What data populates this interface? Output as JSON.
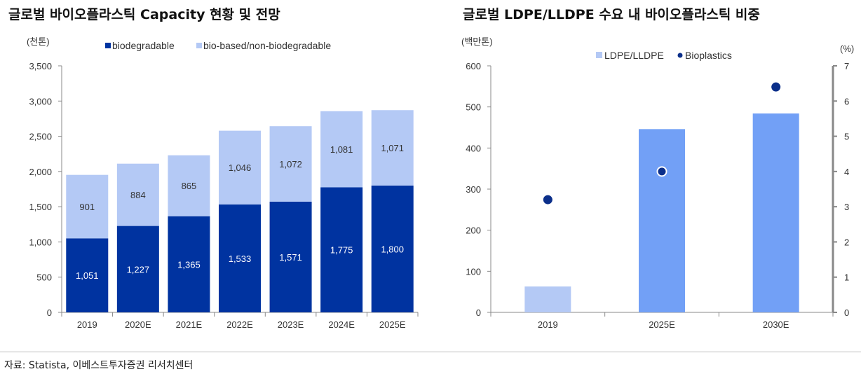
{
  "source": "자료: Statista, 이베스트투자증권 리서치센터",
  "chart_data": [
    {
      "type": "bar",
      "stacked": true,
      "title": "글로벌 바이오플라스틱 Capacity 현황 및 전망",
      "ylabel": "(천톤)",
      "xlabel": "",
      "ylim": [
        0,
        3500
      ],
      "yticks": [
        0,
        500,
        1000,
        1500,
        2000,
        2500,
        3000,
        3500
      ],
      "ytick_labels": [
        "0",
        "500",
        "1,000",
        "1,500",
        "2,000",
        "2,500",
        "3,000",
        "3,500"
      ],
      "categories": [
        "2019",
        "2020E",
        "2021E",
        "2022E",
        "2023E",
        "2024E",
        "2025E"
      ],
      "legend_position": "top",
      "series": [
        {
          "name": "biodegradable",
          "color": "#0033a0",
          "values": [
            1051,
            1227,
            1365,
            1533,
            1571,
            1775,
            1800
          ],
          "labels": [
            "1,051",
            "1,227",
            "1,365",
            "1,533",
            "1,571",
            "1,775",
            "1,800"
          ]
        },
        {
          "name": "bio-based/non-biodegradable",
          "color": "#b4c9f5",
          "values": [
            901,
            884,
            865,
            1046,
            1072,
            1081,
            1071
          ],
          "labels": [
            "901",
            "884",
            "865",
            "1,046",
            "1,072",
            "1,081",
            "1,071"
          ]
        }
      ]
    },
    {
      "type": "bar",
      "title": "글로벌 LDPE/LLDPE 수요 내 바이오플라스틱 비중",
      "ylabel": "(백만톤)",
      "y2label": "(%)",
      "xlabel": "",
      "ylim": [
        0,
        600
      ],
      "yticks": [
        0,
        100,
        200,
        300,
        400,
        500,
        600
      ],
      "y2lim": [
        0,
        7
      ],
      "y2ticks": [
        0,
        1,
        2,
        3,
        4,
        5,
        6,
        7
      ],
      "categories": [
        "2019",
        "2025E",
        "2030E"
      ],
      "legend_position": "top",
      "series": [
        {
          "name": "LDPE/LLDPE",
          "type": "bar",
          "axis": "left",
          "color": "#b4c9f5",
          "point_colors": [
            "#b4c9f5",
            "#72a0f6",
            "#72a0f6"
          ],
          "values": [
            63,
            446,
            484
          ]
        },
        {
          "name": "Bioplastics",
          "type": "scatter",
          "axis": "right",
          "color": "#0b2f8a",
          "values": [
            3.2,
            4.0,
            6.4
          ]
        }
      ]
    }
  ]
}
